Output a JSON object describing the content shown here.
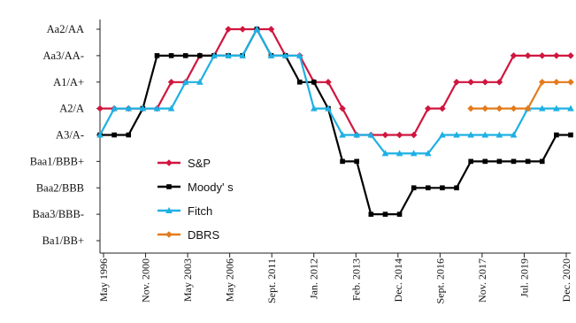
{
  "chart_data": {
    "type": "line",
    "y_categories": [
      "Ba1/BB+",
      "Baa3/BBB-",
      "Baa2/BBB",
      "Baa1/BBB+",
      "A3/A-",
      "A2/A",
      "A1/A+",
      "Aa3/AA-",
      "Aa2/AA"
    ],
    "x_ticks": [
      "May 1996",
      "Nov. 2000",
      "May 2003",
      "May 2006",
      "Sept. 2011",
      "Jan. 2012",
      "Feb. 2013",
      "Dec. 2014",
      "Sept. 2016",
      "Nov. 2017",
      "Jul. 2019",
      "Dec. 2020"
    ],
    "x_points": 33,
    "legend_position": "center-left",
    "series": [
      {
        "name": "S&P",
        "color": "#d0163f",
        "marker": "diamond",
        "points": [
          [
            0,
            5
          ],
          [
            1,
            5
          ],
          [
            2,
            5
          ],
          [
            3,
            5
          ],
          [
            4,
            5
          ],
          [
            5,
            6
          ],
          [
            6,
            6
          ],
          [
            7,
            7
          ],
          [
            8,
            7
          ],
          [
            9,
            8
          ],
          [
            10,
            8
          ],
          [
            11,
            8
          ],
          [
            12,
            8
          ],
          [
            13,
            7
          ],
          [
            14,
            7
          ],
          [
            15,
            6
          ],
          [
            16,
            6
          ],
          [
            17,
            5
          ],
          [
            18,
            4
          ],
          [
            19,
            4
          ],
          [
            20,
            4
          ],
          [
            21,
            4
          ],
          [
            22,
            4
          ],
          [
            23,
            5
          ],
          [
            24,
            5
          ],
          [
            25,
            6
          ],
          [
            26,
            6
          ],
          [
            27,
            6
          ],
          [
            28,
            6
          ],
          [
            29,
            7
          ],
          [
            30,
            7
          ],
          [
            31,
            7
          ],
          [
            32,
            7
          ],
          [
            33,
            7
          ]
        ]
      },
      {
        "name": "Moody' s",
        "color": "#000000",
        "marker": "square",
        "points": [
          [
            0,
            4
          ],
          [
            1,
            4
          ],
          [
            2,
            4
          ],
          [
            3,
            5
          ],
          [
            4,
            7
          ],
          [
            5,
            7
          ],
          [
            6,
            7
          ],
          [
            7,
            7
          ],
          [
            8,
            7
          ],
          [
            9,
            7
          ],
          [
            10,
            7
          ],
          [
            11,
            8
          ],
          [
            12,
            7
          ],
          [
            13,
            7
          ],
          [
            14,
            6
          ],
          [
            15,
            6
          ],
          [
            16,
            5
          ],
          [
            17,
            3
          ],
          [
            18,
            3
          ],
          [
            19,
            1
          ],
          [
            20,
            1
          ],
          [
            21,
            1
          ],
          [
            22,
            2
          ],
          [
            23,
            2
          ],
          [
            24,
            2
          ],
          [
            25,
            2
          ],
          [
            26,
            3
          ],
          [
            27,
            3
          ],
          [
            28,
            3
          ],
          [
            29,
            3
          ],
          [
            30,
            3
          ],
          [
            31,
            3
          ],
          [
            32,
            4
          ],
          [
            33,
            4
          ]
        ]
      },
      {
        "name": "Fitch",
        "color": "#1eb0e3",
        "marker": "triangle",
        "points": [
          [
            0,
            4
          ],
          [
            1,
            5
          ],
          [
            2,
            5
          ],
          [
            3,
            5
          ],
          [
            4,
            5
          ],
          [
            5,
            5
          ],
          [
            6,
            6
          ],
          [
            7,
            6
          ],
          [
            8,
            7
          ],
          [
            9,
            7
          ],
          [
            10,
            7
          ],
          [
            11,
            8
          ],
          [
            12,
            7
          ],
          [
            13,
            7
          ],
          [
            14,
            7
          ],
          [
            15,
            5
          ],
          [
            16,
            5
          ],
          [
            17,
            4
          ],
          [
            18,
            4
          ],
          [
            19,
            4
          ],
          [
            20,
            3.3
          ],
          [
            21,
            3.3
          ],
          [
            22,
            3.3
          ],
          [
            23,
            3.3
          ],
          [
            24,
            4
          ],
          [
            25,
            4
          ],
          [
            26,
            4
          ],
          [
            27,
            4
          ],
          [
            28,
            4
          ],
          [
            29,
            4
          ],
          [
            30,
            5
          ],
          [
            31,
            5
          ],
          [
            32,
            5
          ],
          [
            33,
            5
          ]
        ]
      },
      {
        "name": "DBRS",
        "color": "#e37b1c",
        "marker": "diamond",
        "points": [
          [
            26,
            5
          ],
          [
            27,
            5
          ],
          [
            28,
            5
          ],
          [
            29,
            5
          ],
          [
            30,
            5
          ],
          [
            31,
            6
          ],
          [
            32,
            6
          ],
          [
            33,
            6
          ]
        ]
      }
    ]
  }
}
